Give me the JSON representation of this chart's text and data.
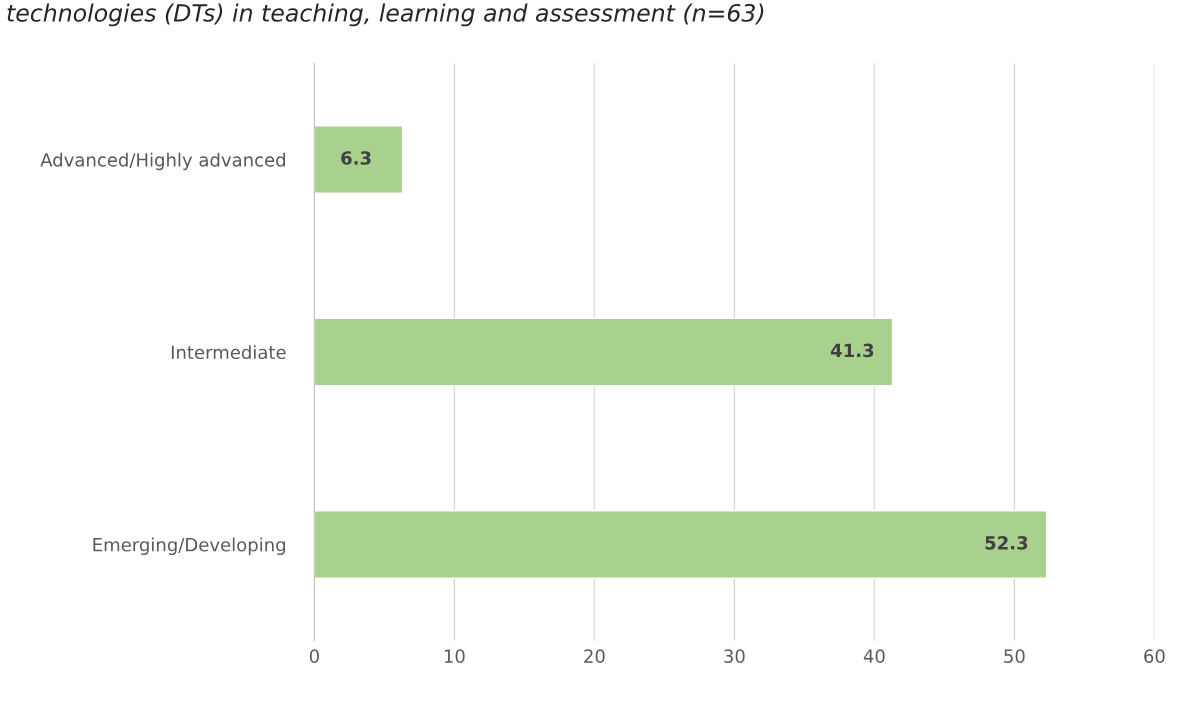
{
  "chart_data": {
    "type": "bar",
    "orientation": "horizontal",
    "title": "technologies (DTs) in teaching, learning and assessment (n=63)",
    "categories": [
      "Advanced/Highly advanced",
      "Intermediate",
      "Emerging/Developing"
    ],
    "values": [
      6.3,
      41.3,
      52.3
    ],
    "color": "#a9d18e",
    "data_labels": true,
    "xlim": [
      0,
      60
    ],
    "xticks": [
      0,
      10,
      20,
      30,
      40,
      50,
      60
    ],
    "grid": "x"
  }
}
